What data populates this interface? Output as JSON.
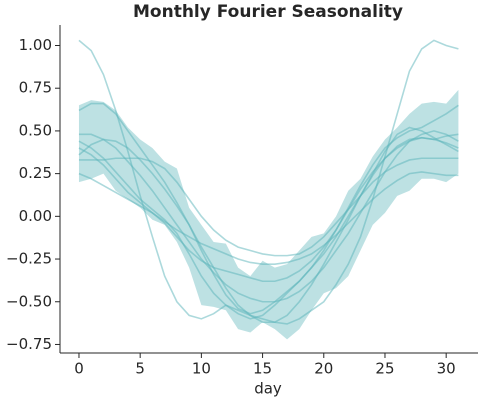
{
  "chart_data": {
    "type": "line",
    "title": "Monthly Fourier Seasonality",
    "xlabel": "day",
    "x": [
      0,
      1,
      2,
      3,
      4,
      5,
      6,
      7,
      8,
      9,
      10,
      11,
      12,
      13,
      14,
      15,
      16,
      17,
      18,
      19,
      20,
      21,
      22,
      23,
      24,
      25,
      26,
      27,
      28,
      29,
      30,
      31
    ],
    "xlim": [
      -1.55,
      32.6
    ],
    "ylim": [
      -0.8,
      1.12
    ],
    "xticks": [
      0,
      5,
      10,
      15,
      20,
      25,
      30
    ],
    "yticks": [
      {
        "value": -0.75,
        "label": "−0.75"
      },
      {
        "value": -0.5,
        "label": "−0.50"
      },
      {
        "value": -0.25,
        "label": "−0.25"
      },
      {
        "value": 0,
        "label": "0.00"
      },
      {
        "value": 0.25,
        "label": "0.25"
      },
      {
        "value": 0.5,
        "label": "0.50"
      },
      {
        "value": 0.75,
        "label": "0.75"
      },
      {
        "value": 1,
        "label": "1.00"
      }
    ],
    "band": {
      "color": "#5ab4ba",
      "upper": [
        0.65,
        0.68,
        0.67,
        0.62,
        0.52,
        0.45,
        0.4,
        0.32,
        0.28,
        0.05,
        -0.05,
        -0.15,
        -0.16,
        -0.3,
        -0.35,
        -0.26,
        -0.3,
        -0.28,
        -0.2,
        -0.12,
        -0.1,
        0.0,
        0.15,
        0.22,
        0.35,
        0.45,
        0.52,
        0.6,
        0.66,
        0.67,
        0.66,
        0.74
      ],
      "lower": [
        0.2,
        0.22,
        0.25,
        0.15,
        0.1,
        0.05,
        -0.02,
        -0.05,
        -0.15,
        -0.3,
        -0.52,
        -0.53,
        -0.55,
        -0.66,
        -0.68,
        -0.62,
        -0.66,
        -0.72,
        -0.66,
        -0.55,
        -0.45,
        -0.42,
        -0.35,
        -0.2,
        -0.05,
        0.02,
        0.12,
        0.15,
        0.22,
        0.22,
        0.2,
        0.25
      ]
    },
    "series": [
      {
        "color": "#5ab4ba",
        "values": [
          1.03,
          0.97,
          0.83,
          0.62,
          0.38,
          0.12,
          -0.12,
          -0.35,
          -0.5,
          -0.58,
          -0.6,
          -0.57,
          -0.52,
          -0.55,
          -0.58,
          -0.6,
          -0.62,
          -0.63,
          -0.6,
          -0.55,
          -0.5,
          -0.4,
          -0.28,
          -0.12,
          0.1,
          0.35,
          0.6,
          0.85,
          0.98,
          1.03,
          1.0,
          0.98
        ]
      },
      {
        "color": "#5ab4ba",
        "values": [
          0.25,
          0.22,
          0.18,
          0.14,
          0.1,
          0.06,
          0.02,
          -0.03,
          -0.08,
          -0.12,
          -0.16,
          -0.19,
          -0.22,
          -0.25,
          -0.27,
          -0.28,
          -0.28,
          -0.27,
          -0.25,
          -0.22,
          -0.17,
          -0.11,
          -0.04,
          0.03,
          0.1,
          0.16,
          0.21,
          0.25,
          0.26,
          0.25,
          0.24,
          0.24
        ]
      },
      {
        "color": "#5ab4ba",
        "values": [
          0.33,
          0.33,
          0.33,
          0.34,
          0.34,
          0.34,
          0.32,
          0.28,
          0.2,
          0.1,
          0.0,
          -0.08,
          -0.14,
          -0.18,
          -0.2,
          -0.22,
          -0.23,
          -0.23,
          -0.22,
          -0.18,
          -0.12,
          -0.04,
          0.04,
          0.12,
          0.2,
          0.26,
          0.3,
          0.33,
          0.34,
          0.34,
          0.34,
          0.34
        ]
      },
      {
        "color": "#5ab4ba",
        "values": [
          0.48,
          0.48,
          0.45,
          0.4,
          0.32,
          0.24,
          0.15,
          0.05,
          -0.05,
          -0.15,
          -0.25,
          -0.33,
          -0.4,
          -0.45,
          -0.48,
          -0.5,
          -0.5,
          -0.48,
          -0.44,
          -0.38,
          -0.3,
          -0.2,
          -0.1,
          0.02,
          0.14,
          0.26,
          0.36,
          0.44,
          0.48,
          0.5,
          0.48,
          0.44
        ]
      },
      {
        "color": "#5ab4ba",
        "values": [
          0.44,
          0.4,
          0.34,
          0.26,
          0.18,
          0.1,
          0.04,
          -0.02,
          -0.1,
          -0.22,
          -0.35,
          -0.45,
          -0.52,
          -0.57,
          -0.6,
          -0.58,
          -0.52,
          -0.45,
          -0.38,
          -0.3,
          -0.22,
          -0.12,
          0.0,
          0.12,
          0.25,
          0.38,
          0.48,
          0.52,
          0.5,
          0.46,
          0.42,
          0.38
        ]
      },
      {
        "color": "#5ab4ba",
        "values": [
          0.36,
          0.42,
          0.45,
          0.44,
          0.4,
          0.33,
          0.25,
          0.16,
          0.06,
          -0.05,
          -0.18,
          -0.3,
          -0.42,
          -0.52,
          -0.58,
          -0.62,
          -0.62,
          -0.58,
          -0.5,
          -0.4,
          -0.28,
          -0.15,
          -0.02,
          0.12,
          0.24,
          0.34,
          0.41,
          0.45,
          0.46,
          0.45,
          0.47,
          0.48
        ]
      },
      {
        "color": "#5ab4ba",
        "values": [
          0.4,
          0.36,
          0.3,
          0.22,
          0.14,
          0.08,
          0.02,
          -0.04,
          -0.12,
          -0.2,
          -0.26,
          -0.3,
          -0.32,
          -0.34,
          -0.36,
          -0.38,
          -0.38,
          -0.36,
          -0.32,
          -0.26,
          -0.18,
          -0.08,
          0.04,
          0.16,
          0.26,
          0.34,
          0.4,
          0.44,
          0.46,
          0.45,
          0.43,
          0.4
        ]
      },
      {
        "color": "#5ab4ba",
        "values": [
          0.62,
          0.66,
          0.66,
          0.6,
          0.5,
          0.4,
          0.3,
          0.2,
          0.08,
          -0.05,
          -0.2,
          -0.34,
          -0.46,
          -0.54,
          -0.57,
          -0.55,
          -0.5,
          -0.44,
          -0.38,
          -0.3,
          -0.2,
          -0.08,
          0.05,
          0.18,
          0.3,
          0.4,
          0.46,
          0.5,
          0.52,
          0.56,
          0.6,
          0.65
        ]
      }
    ]
  }
}
